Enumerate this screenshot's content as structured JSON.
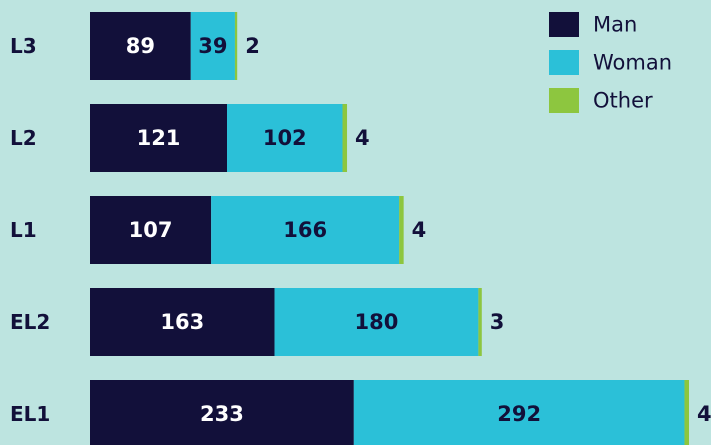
{
  "chart_data": {
    "type": "stacked-bar",
    "orientation": "horizontal",
    "categories": [
      "L3",
      "L2",
      "L1",
      "EL2",
      "EL1"
    ],
    "series": [
      {
        "name": "Man",
        "color": "#12103a",
        "values": [
          89,
          121,
          107,
          163,
          233
        ]
      },
      {
        "name": "Woman",
        "color": "#2bc0d8",
        "values": [
          39,
          102,
          166,
          180,
          292
        ]
      },
      {
        "name": "Other",
        "color": "#8dc63f",
        "values": [
          2,
          4,
          4,
          3,
          4
        ]
      }
    ],
    "legend": "top-right"
  }
}
